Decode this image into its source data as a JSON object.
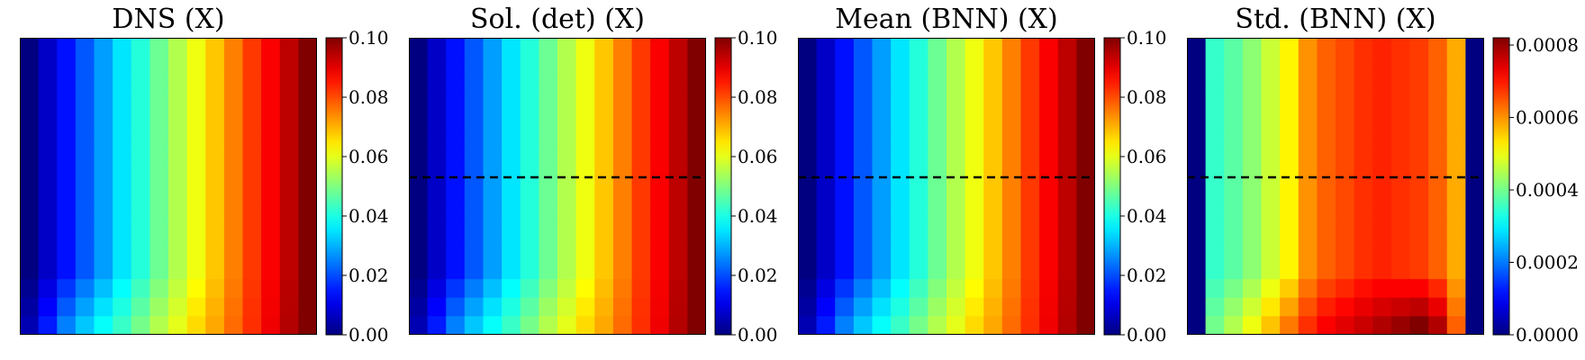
{
  "chart_data": [
    {
      "type": "heatmap",
      "title": "DNS (X)",
      "dashed_line": false,
      "grid_size": [
        16,
        16
      ],
      "colorbar": {
        "min": 0.0,
        "max": 0.1,
        "ticks": [
          "0.00",
          "0.02",
          "0.04",
          "0.06",
          "0.08",
          "0.10"
        ],
        "tick_values": [
          0,
          0.02,
          0.04,
          0.06,
          0.08,
          0.1
        ]
      },
      "column_values": [
        0.0,
        0.007,
        0.014,
        0.021,
        0.028,
        0.035,
        0.041,
        0.048,
        0.055,
        0.061,
        0.068,
        0.075,
        0.082,
        0.088,
        0.094,
        0.1
      ],
      "bottom_row_values": [
        0.005,
        0.015,
        0.025,
        0.032,
        0.038,
        0.043,
        0.049,
        0.055,
        0.06,
        0.066,
        0.071,
        0.077,
        0.083,
        0.089,
        0.095,
        0.1
      ]
    },
    {
      "type": "heatmap",
      "title": "Sol. (det) (X)",
      "dashed_line": true,
      "grid_size": [
        16,
        16
      ],
      "colorbar": {
        "min": 0.0,
        "max": 0.1,
        "ticks": [
          "0.00",
          "0.02",
          "0.04",
          "0.06",
          "0.08",
          "0.10"
        ],
        "tick_values": [
          0,
          0.02,
          0.04,
          0.06,
          0.08,
          0.1
        ]
      },
      "column_values": [
        0.0,
        0.007,
        0.014,
        0.021,
        0.028,
        0.035,
        0.041,
        0.048,
        0.055,
        0.061,
        0.068,
        0.075,
        0.082,
        0.088,
        0.094,
        0.1
      ],
      "bottom_row_values": [
        0.005,
        0.015,
        0.025,
        0.032,
        0.038,
        0.043,
        0.049,
        0.055,
        0.06,
        0.066,
        0.071,
        0.077,
        0.083,
        0.089,
        0.095,
        0.1
      ]
    },
    {
      "type": "heatmap",
      "title": "Mean (BNN) (X)",
      "dashed_line": true,
      "grid_size": [
        16,
        16
      ],
      "colorbar": {
        "min": 0.0,
        "max": 0.1,
        "ticks": [
          "0.00",
          "0.02",
          "0.04",
          "0.06",
          "0.08",
          "0.10"
        ],
        "tick_values": [
          0,
          0.02,
          0.04,
          0.06,
          0.08,
          0.1
        ]
      },
      "column_values": [
        0.0,
        0.007,
        0.014,
        0.021,
        0.028,
        0.035,
        0.041,
        0.048,
        0.055,
        0.061,
        0.068,
        0.075,
        0.082,
        0.088,
        0.094,
        0.1
      ],
      "bottom_row_values": [
        0.005,
        0.015,
        0.025,
        0.032,
        0.038,
        0.043,
        0.049,
        0.055,
        0.06,
        0.066,
        0.071,
        0.077,
        0.083,
        0.089,
        0.095,
        0.1
      ]
    },
    {
      "type": "heatmap",
      "title": "Std. (BNN) (X)",
      "dashed_line": true,
      "grid_size": [
        16,
        16
      ],
      "colorbar": {
        "min": 0.0,
        "max": 0.00082,
        "ticks": [
          "0.0000",
          "0.0002",
          "0.0004",
          "0.0006",
          "0.0008"
        ],
        "tick_values": [
          0,
          0.0002,
          0.0004,
          0.0006,
          0.0008
        ]
      },
      "column_values": [
        0.0,
        0.00035,
        0.00038,
        0.00042,
        0.00047,
        0.00052,
        0.0006,
        0.00064,
        0.00066,
        0.00068,
        0.00069,
        0.00068,
        0.00067,
        0.00064,
        0.00058,
        0.0
      ],
      "bottom_row_values": [
        0.0,
        0.0004,
        0.00045,
        0.0005,
        0.00056,
        0.00062,
        0.00068,
        0.00072,
        0.00074,
        0.00076,
        0.00078,
        0.0008,
        0.00082,
        0.00078,
        0.00064,
        0.0
      ]
    }
  ]
}
